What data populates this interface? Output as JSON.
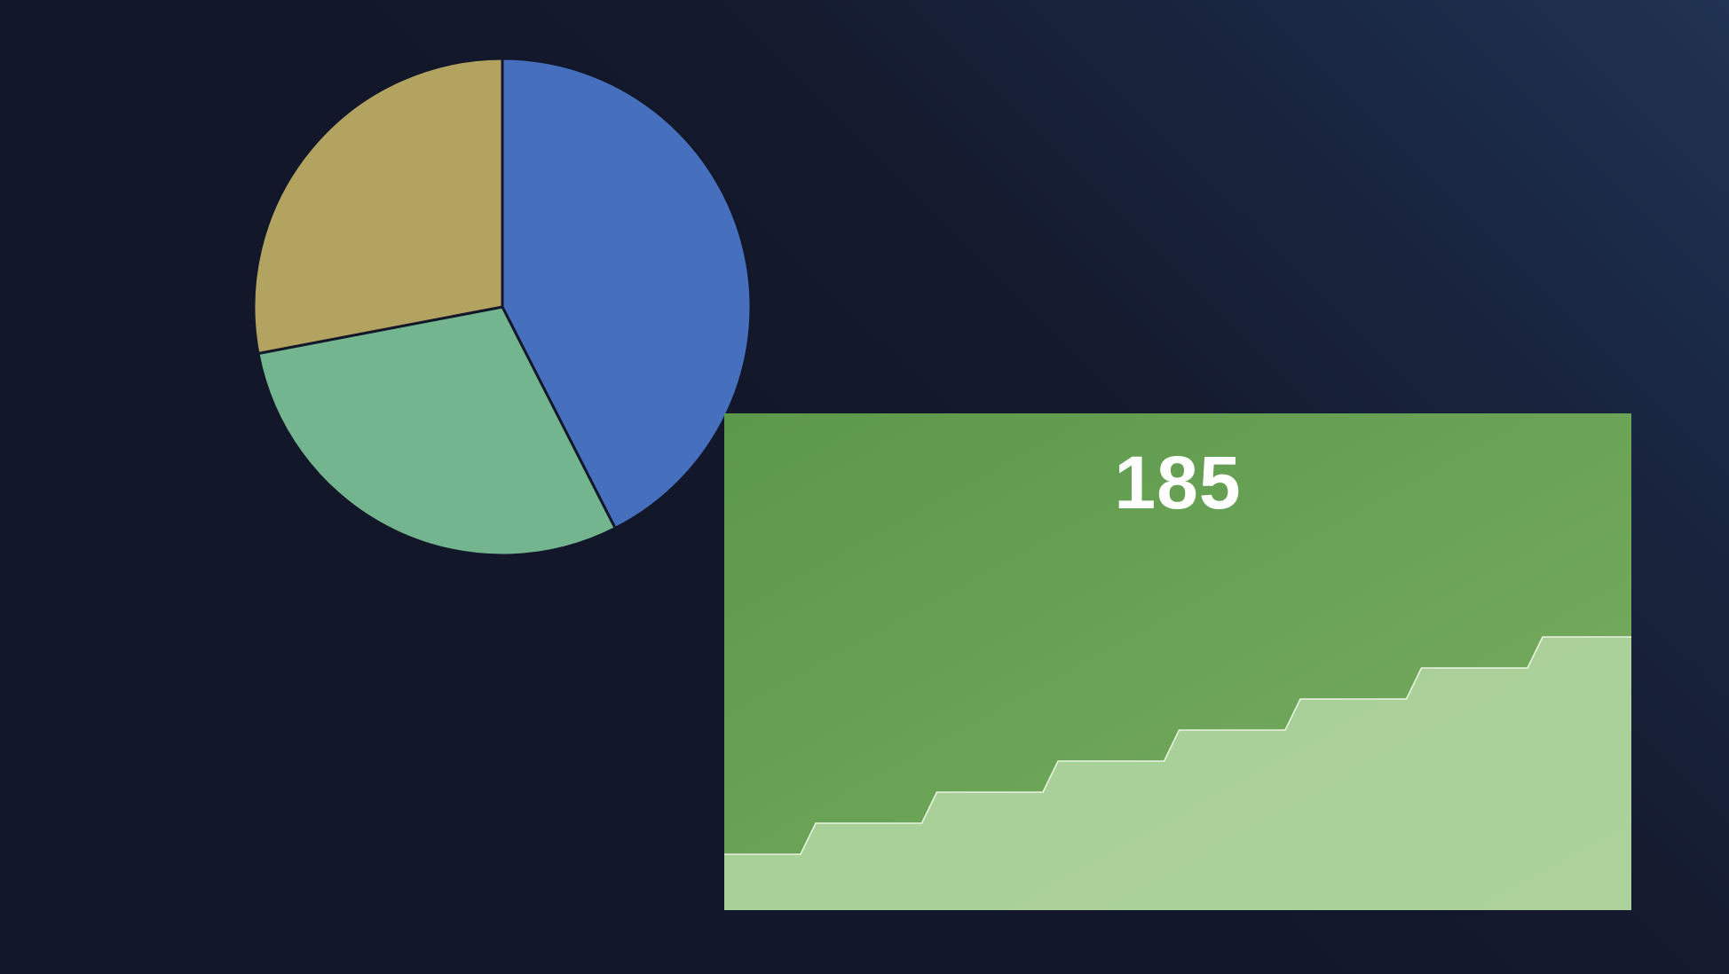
{
  "colors": {
    "background": "#121729",
    "pie": [
      "#466fbd",
      "#73b58e",
      "#b3a361"
    ],
    "kpi_card_start": "#5c984b",
    "kpi_card_end": "#7aae62",
    "spark_fill": "#b3d6a3",
    "spark_line": "#e8f4df"
  },
  "kpi": {
    "value": "185"
  },
  "chart_data": [
    {
      "type": "pie",
      "values": [
        42.5,
        29.5,
        28.0
      ],
      "start_angle_deg": 0,
      "direction": "clockwise",
      "legend": "none"
    },
    {
      "type": "area",
      "subtype": "step",
      "values": [
        1,
        2,
        3,
        4,
        5,
        6,
        7,
        8
      ],
      "ylim": [
        0,
        8
      ],
      "grid": false,
      "legend": "none"
    }
  ]
}
